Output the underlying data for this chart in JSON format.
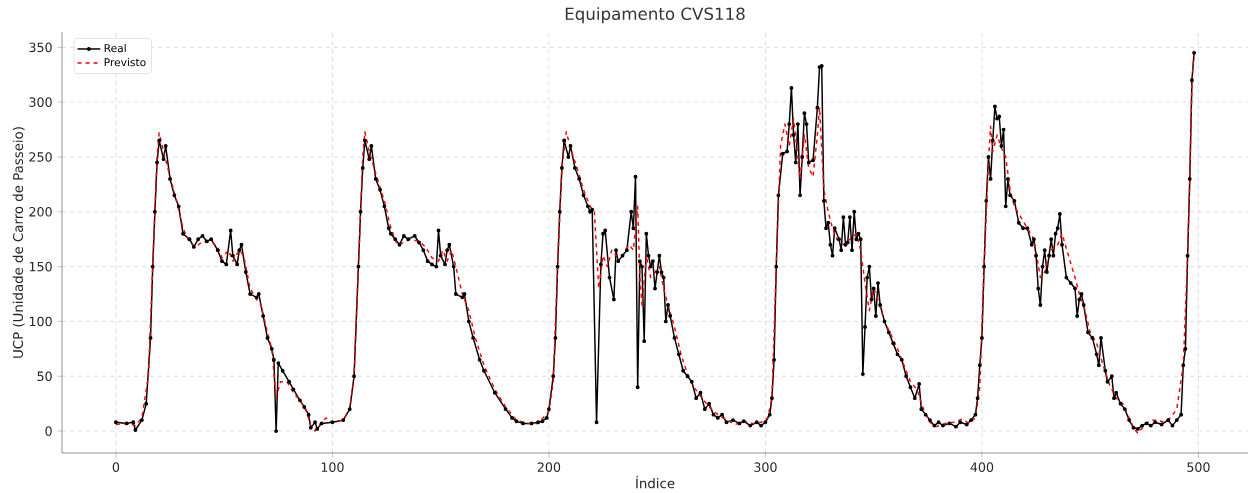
{
  "chart_data": {
    "type": "line",
    "title": "Equipamento CVS118",
    "xlabel": "Índice",
    "ylabel": "UCP (Unidade de Carro de Passeio)",
    "xlim": [
      -24.9,
      522.9
    ],
    "ylim": [
      -20,
      364
    ],
    "xticks": [
      0,
      100,
      200,
      300,
      400,
      500
    ],
    "yticks": [
      0,
      50,
      100,
      150,
      200,
      250,
      300,
      350
    ],
    "grid": true,
    "legend": "top left",
    "series": [
      {
        "name": "Real",
        "color": "#000000",
        "marker": "circle",
        "line_style": "solid",
        "x": [
          0,
          5,
          8,
          9,
          12,
          14,
          16,
          17,
          18,
          19,
          20,
          22,
          23,
          25,
          27,
          29,
          31,
          34,
          36,
          38,
          40,
          42,
          44,
          47,
          49,
          51,
          53,
          54,
          56,
          57,
          58,
          60,
          62,
          65,
          66,
          68,
          70,
          72,
          73,
          74,
          75,
          77,
          80,
          82,
          85,
          87,
          89,
          90,
          92,
          93,
          95,
          100,
          105,
          108,
          110,
          112,
          113,
          114,
          115,
          117,
          118,
          120,
          122,
          124,
          126,
          127,
          129,
          131,
          133,
          135,
          138,
          140,
          142,
          144,
          146,
          148,
          149,
          150,
          152,
          153,
          154,
          156,
          157,
          160,
          161,
          163,
          165,
          168,
          170,
          175,
          180,
          183,
          185,
          188,
          192,
          195,
          197,
          199,
          200,
          202,
          203,
          204,
          205,
          206,
          207,
          209,
          210,
          212,
          214,
          216,
          218,
          219,
          220,
          222,
          224,
          225,
          226,
          228,
          230,
          231,
          232,
          234,
          236,
          238,
          239,
          240,
          241,
          242,
          243,
          244,
          245,
          246,
          247,
          248,
          249,
          250,
          251,
          252,
          253,
          254,
          255,
          256,
          258,
          260,
          262,
          264,
          266,
          268,
          270,
          272,
          274,
          276,
          278,
          280,
          282,
          285,
          288,
          290,
          293,
          296,
          298,
          300,
          302,
          303,
          304,
          305,
          306,
          308,
          310,
          311,
          312,
          313,
          314,
          315,
          316,
          317,
          318,
          319,
          320,
          322,
          324,
          325,
          326,
          327,
          328,
          329,
          330,
          331,
          332,
          334,
          335,
          336,
          337,
          338,
          339,
          340,
          341,
          342,
          343,
          344,
          345,
          346,
          347,
          348,
          349,
          350,
          351,
          352,
          353,
          355,
          357,
          359,
          361,
          363,
          365,
          367,
          369,
          371,
          372,
          374,
          376,
          378,
          380,
          382,
          385,
          388,
          390,
          393,
          395,
          397,
          398,
          399,
          400,
          401,
          402,
          403,
          404,
          405,
          406,
          407,
          408,
          409,
          410,
          411,
          412,
          413,
          415,
          417,
          419,
          421,
          423,
          424,
          425,
          426,
          427,
          428,
          429,
          430,
          431,
          432,
          433,
          434,
          435,
          436,
          437,
          439,
          441,
          443,
          444,
          445,
          446,
          447,
          449,
          451,
          453,
          454,
          455,
          457,
          458,
          460,
          461,
          462,
          464,
          466,
          468,
          470,
          472,
          474,
          476,
          478,
          480,
          483,
          486,
          488,
          490,
          492,
          493,
          494,
          495,
          496,
          497,
          498
        ],
        "values": [
          8,
          7,
          8,
          1,
          10,
          25,
          85,
          150,
          200,
          245,
          265,
          248,
          260,
          230,
          215,
          205,
          180,
          175,
          168,
          175,
          178,
          173,
          175,
          165,
          155,
          152,
          183,
          160,
          152,
          165,
          170,
          145,
          125,
          122,
          125,
          105,
          85,
          75,
          65,
          0,
          62,
          55,
          45,
          38,
          28,
          22,
          15,
          3,
          8,
          2,
          7,
          8,
          10,
          20,
          50,
          150,
          200,
          240,
          265,
          248,
          260,
          230,
          220,
          205,
          185,
          180,
          175,
          170,
          178,
          175,
          178,
          172,
          165,
          155,
          152,
          150,
          183,
          160,
          152,
          165,
          170,
          150,
          125,
          122,
          125,
          100,
          85,
          65,
          55,
          35,
          20,
          12,
          9,
          7,
          7,
          8,
          9,
          12,
          20,
          50,
          85,
          150,
          200,
          240,
          265,
          250,
          260,
          240,
          230,
          215,
          205,
          200,
          202,
          8,
          152,
          180,
          183,
          140,
          120,
          165,
          155,
          160,
          165,
          200,
          185,
          232,
          40,
          155,
          150,
          82,
          180,
          160,
          150,
          155,
          130,
          145,
          160,
          145,
          140,
          100,
          115,
          105,
          85,
          70,
          55,
          50,
          45,
          30,
          35,
          20,
          25,
          15,
          12,
          15,
          8,
          10,
          7,
          9,
          5,
          8,
          5,
          8,
          15,
          30,
          65,
          150,
          215,
          253,
          255,
          280,
          313,
          270,
          245,
          280,
          215,
          250,
          290,
          280,
          245,
          247,
          295,
          332,
          333,
          210,
          185,
          190,
          170,
          160,
          185,
          175,
          165,
          195,
          170,
          172,
          195,
          165,
          200,
          175,
          180,
          175,
          52,
          95,
          140,
          150,
          120,
          130,
          105,
          135,
          115,
          100,
          90,
          80,
          70,
          65,
          50,
          40,
          30,
          43,
          20,
          15,
          10,
          5,
          8,
          5,
          7,
          4,
          8,
          6,
          10,
          15,
          30,
          60,
          85,
          150,
          210,
          250,
          230,
          265,
          296,
          285,
          287,
          260,
          275,
          205,
          230,
          215,
          210,
          190,
          185,
          185,
          170,
          175,
          160,
          130,
          115,
          150,
          165,
          145,
          160,
          175,
          160,
          180,
          185,
          198,
          170,
          140,
          135,
          130,
          105,
          120,
          125,
          115,
          90,
          85,
          70,
          60,
          85,
          55,
          45,
          50,
          30,
          35,
          25,
          20,
          10,
          3,
          2,
          5,
          7,
          5,
          8,
          6,
          10,
          5,
          10,
          15,
          60,
          75,
          160,
          230,
          320,
          345
        ]
      },
      {
        "name": "Previsto",
        "color": "#ff0000",
        "marker": "none",
        "line_style": "dashed",
        "x": [
          0,
          5,
          9,
          12,
          15,
          17,
          19,
          20,
          22,
          25,
          28,
          31,
          34,
          37,
          40,
          44,
          47,
          49,
          52,
          54,
          57,
          59,
          62,
          65,
          67,
          70,
          72,
          74,
          76,
          79,
          82,
          85,
          88,
          90,
          92,
          95,
          97,
          100,
          105,
          108,
          110,
          112,
          114,
          115,
          117,
          120,
          124,
          127,
          130,
          133,
          136,
          140,
          143,
          146,
          149,
          151,
          153,
          155,
          157,
          160,
          163,
          166,
          170,
          175,
          180,
          185,
          190,
          195,
          200,
          202,
          204,
          206,
          208,
          210,
          213,
          216,
          219,
          221,
          223,
          225,
          227,
          229,
          231,
          234,
          237,
          239,
          241,
          242,
          243,
          245,
          247,
          249,
          251,
          253,
          255,
          258,
          261,
          264,
          267,
          270,
          274,
          278,
          282,
          286,
          290,
          294,
          298,
          301,
          303,
          305,
          307,
          309,
          311,
          313,
          315,
          316,
          318,
          320,
          322,
          324,
          325,
          327,
          329,
          331,
          333,
          336,
          339,
          342,
          344,
          346,
          348,
          350,
          352,
          355,
          358,
          361,
          364,
          367,
          370,
          373,
          376,
          379,
          383,
          387,
          391,
          394,
          397,
          399,
          401,
          403,
          404,
          405,
          407,
          409,
          411,
          413,
          415,
          418,
          421,
          424,
          427,
          429,
          432,
          435,
          437,
          440,
          443,
          445,
          447,
          450,
          453,
          456,
          459,
          462,
          465,
          468,
          470,
          472,
          475,
          478,
          481,
          484,
          487,
          490,
          493,
          495,
          496,
          497,
          498
        ],
        "values": [
          6,
          7,
          5,
          12,
          50,
          150,
          250,
          272,
          255,
          232,
          210,
          185,
          172,
          168,
          173,
          173,
          168,
          158,
          165,
          155,
          165,
          160,
          130,
          120,
          115,
          90,
          75,
          30,
          45,
          45,
          35,
          28,
          18,
          5,
          0,
          8,
          12,
          8,
          10,
          20,
          50,
          150,
          250,
          273,
          255,
          235,
          210,
          185,
          170,
          172,
          175,
          173,
          168,
          158,
          155,
          165,
          155,
          165,
          150,
          125,
          110,
          85,
          60,
          38,
          22,
          10,
          7,
          7,
          18,
          45,
          150,
          240,
          273,
          258,
          240,
          220,
          205,
          200,
          130,
          160,
          150,
          165,
          160,
          160,
          170,
          165,
          205,
          140,
          115,
          160,
          140,
          145,
          150,
          130,
          115,
          95,
          70,
          52,
          40,
          32,
          22,
          15,
          10,
          6,
          9,
          7,
          8,
          12,
          30,
          150,
          260,
          280,
          260,
          285,
          250,
          230,
          270,
          240,
          232,
          270,
          295,
          220,
          200,
          185,
          175,
          170,
          175,
          180,
          165,
          135,
          110,
          130,
          120,
          100,
          88,
          75,
          60,
          45,
          38,
          20,
          8,
          4,
          7,
          8,
          11,
          7,
          12,
          40,
          150,
          245,
          278,
          255,
          270,
          258,
          250,
          220,
          205,
          195,
          185,
          175,
          140,
          145,
          165,
          170,
          180,
          160,
          140,
          125,
          115,
          90,
          80,
          60,
          42,
          30,
          25,
          12,
          3,
          -2,
          5,
          10,
          10,
          8,
          12,
          20,
          60,
          160,
          230,
          320,
          345
        ]
      }
    ]
  }
}
